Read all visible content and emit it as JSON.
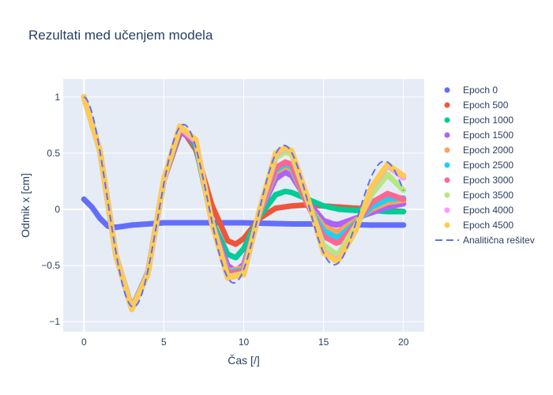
{
  "chart_data": {
    "type": "scatter",
    "title": "Rezultati med učenjem modela",
    "xlabel": "Čas [/]",
    "ylabel": "Odmik x [cm]",
    "xlim": [
      -1.3,
      21.3
    ],
    "ylim": [
      -1.09,
      1.16
    ],
    "xticks": [
      0,
      5,
      10,
      15,
      20
    ],
    "xtick_labels": [
      "0",
      "5",
      "10",
      "15",
      "20"
    ],
    "yticks": [
      1,
      0.5,
      0,
      -0.5,
      -1
    ],
    "ytick_labels": [
      "1",
      "0.5",
      "0",
      "−0.5",
      "−1"
    ],
    "grid": true,
    "legend_position": "right",
    "x_samples_start": 0,
    "x_samples_end": 20,
    "analytic_model": "y = exp(-0.045 x) * cos(x)",
    "series": [
      {
        "name": "Epoch 0",
        "color": "#636efa",
        "mode": "markers",
        "x": [
          0,
          0.5,
          1,
          1.5,
          2,
          3,
          5,
          7,
          10,
          13,
          15,
          18,
          20
        ],
        "y": [
          0.09,
          0.02,
          -0.08,
          -0.15,
          -0.16,
          -0.14,
          -0.12,
          -0.12,
          -0.12,
          -0.13,
          -0.13,
          -0.14,
          -0.14
        ]
      },
      {
        "name": "Epoch 500",
        "color": "#EF553B",
        "mode": "markers",
        "x": [
          0,
          1,
          2,
          3,
          4,
          5,
          6,
          6.3,
          7,
          8,
          9,
          9.5,
          10,
          11,
          12,
          13,
          14,
          15,
          16,
          17,
          18,
          19,
          20
        ],
        "y": [
          1.0,
          0.52,
          -0.41,
          -0.88,
          -0.56,
          0.26,
          0.67,
          0.68,
          0.53,
          0.04,
          -0.28,
          -0.31,
          -0.26,
          -0.08,
          0.01,
          0.03,
          0.04,
          0.03,
          0.02,
          0.01,
          0.0,
          -0.01,
          -0.02
        ]
      },
      {
        "name": "Epoch 1000",
        "color": "#00cc96",
        "mode": "markers",
        "x": [
          0,
          1,
          2,
          3,
          4,
          5,
          6,
          6.3,
          7,
          8,
          9,
          9.5,
          10,
          11,
          12,
          12.6,
          13,
          14,
          15,
          16,
          17,
          18,
          19,
          20
        ],
        "y": [
          1.0,
          0.52,
          -0.41,
          -0.88,
          -0.56,
          0.26,
          0.69,
          0.69,
          0.56,
          -0.1,
          -0.4,
          -0.43,
          -0.35,
          -0.06,
          0.13,
          0.16,
          0.15,
          0.09,
          0.03,
          0.0,
          -0.01,
          -0.01,
          -0.02,
          -0.02
        ]
      },
      {
        "name": "Epoch 1500",
        "color": "#ab63fa",
        "mode": "markers",
        "x": [
          0,
          1,
          2,
          3,
          4,
          5,
          6,
          7,
          8,
          9,
          9.5,
          10,
          11,
          12,
          12.6,
          13,
          14,
          15,
          15.8,
          16,
          17,
          18,
          19,
          20
        ],
        "y": [
          1.0,
          0.52,
          -0.41,
          -0.88,
          -0.57,
          0.26,
          0.7,
          0.59,
          -0.11,
          -0.5,
          -0.55,
          -0.49,
          -0.03,
          0.27,
          0.33,
          0.3,
          0.07,
          -0.1,
          -0.14,
          -0.13,
          -0.08,
          -0.03,
          0.02,
          0.05
        ]
      },
      {
        "name": "Epoch 2000",
        "color": "#FFA15A",
        "mode": "markers",
        "x": [
          0,
          1,
          2,
          3,
          4,
          5,
          6,
          7,
          8,
          9,
          10,
          11,
          12,
          12.6,
          13,
          14,
          15,
          15.8,
          16,
          17,
          18,
          19,
          20
        ],
        "y": [
          1.0,
          0.52,
          -0.41,
          -0.89,
          -0.57,
          0.26,
          0.72,
          0.6,
          -0.11,
          -0.55,
          -0.52,
          -0.03,
          0.33,
          0.38,
          0.36,
          0.04,
          -0.15,
          -0.2,
          -0.19,
          -0.1,
          0.0,
          0.06,
          0.08
        ]
      },
      {
        "name": "Epoch 2500",
        "color": "#19d3f3",
        "mode": "markers",
        "x": [
          0,
          1,
          2,
          3,
          4,
          5,
          6,
          7,
          8,
          9,
          10,
          11,
          12,
          12.6,
          13,
          14,
          15,
          15.8,
          16,
          17,
          18,
          19,
          20
        ],
        "y": [
          1.0,
          0.52,
          -0.41,
          -0.89,
          -0.57,
          0.26,
          0.72,
          0.6,
          -0.11,
          -0.56,
          -0.54,
          -0.02,
          0.35,
          0.4,
          0.38,
          0.04,
          -0.19,
          -0.25,
          -0.24,
          -0.12,
          0.02,
          0.09,
          0.1
        ]
      },
      {
        "name": "Epoch 3000",
        "color": "#FF6692",
        "mode": "markers",
        "x": [
          0,
          1,
          2,
          3,
          4,
          5,
          6,
          7,
          8,
          9,
          10,
          11,
          12,
          12.6,
          13,
          14,
          15,
          15.8,
          16,
          17,
          18,
          19,
          20
        ],
        "y": [
          1.0,
          0.52,
          -0.41,
          -0.89,
          -0.57,
          0.26,
          0.72,
          0.6,
          -0.11,
          -0.57,
          -0.55,
          -0.02,
          0.37,
          0.42,
          0.4,
          0.04,
          -0.24,
          -0.3,
          -0.29,
          -0.13,
          0.06,
          0.14,
          0.09
        ]
      },
      {
        "name": "Epoch 3500",
        "color": "#B6E880",
        "mode": "markers",
        "x": [
          0,
          1,
          2,
          3,
          4,
          5,
          6,
          7,
          8,
          9,
          10,
          11,
          12,
          12.6,
          13,
          14,
          15,
          15.8,
          16,
          17,
          18,
          19,
          20
        ],
        "y": [
          1.0,
          0.52,
          -0.41,
          -0.89,
          -0.57,
          0.27,
          0.73,
          0.61,
          -0.11,
          -0.6,
          -0.57,
          -0.01,
          0.46,
          0.51,
          0.49,
          0.08,
          -0.32,
          -0.4,
          -0.38,
          -0.15,
          0.13,
          0.31,
          0.17
        ]
      },
      {
        "name": "Epoch 4000",
        "color": "#FF97FF",
        "mode": "markers",
        "x": [
          0,
          1,
          2,
          3,
          4,
          5,
          6,
          7,
          8,
          9,
          10,
          11,
          12,
          12.6,
          13,
          14,
          15,
          15.8,
          16,
          17,
          18,
          19,
          20
        ],
        "y": [
          1.0,
          0.52,
          -0.41,
          -0.89,
          -0.57,
          0.27,
          0.73,
          0.61,
          -0.12,
          -0.61,
          -0.58,
          -0.01,
          0.49,
          0.54,
          0.52,
          0.1,
          -0.38,
          -0.45,
          -0.43,
          -0.19,
          0.19,
          0.39,
          0.28
        ]
      },
      {
        "name": "Epoch 4500",
        "color": "#FECB52",
        "mode": "markers",
        "x": [
          0,
          1,
          2,
          3,
          4,
          5,
          6,
          7,
          8,
          9,
          10,
          11,
          12,
          12.6,
          13,
          14,
          15,
          15.8,
          16,
          17,
          18,
          19,
          20
        ],
        "y": [
          1.0,
          0.52,
          -0.41,
          -0.89,
          -0.58,
          0.27,
          0.74,
          0.62,
          -0.12,
          -0.61,
          -0.58,
          -0.0,
          0.5,
          0.55,
          0.52,
          0.1,
          -0.39,
          -0.46,
          -0.44,
          -0.19,
          0.2,
          0.4,
          0.3
        ]
      },
      {
        "name": "Analitična rešitev",
        "color": "#636efa",
        "mode": "dash-line"
      }
    ]
  }
}
